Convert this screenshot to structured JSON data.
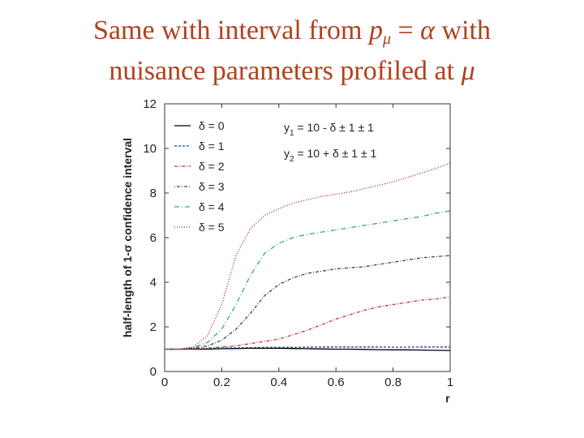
{
  "slide": {
    "title_line1_a": "Same with interval from ",
    "title_p": "p",
    "title_sub": "μ",
    "title_line1_b": " = ",
    "title_alpha": "α",
    "title_line1_c": " with",
    "title_line2_a": "nuisance parameters profiled at ",
    "title_mu": "μ"
  },
  "chart_data": {
    "type": "line",
    "title": "",
    "xlabel": "r",
    "ylabel": "half-length of 1-σ confidence interval",
    "xlim": [
      0,
      1
    ],
    "ylim": [
      0,
      12
    ],
    "xticks": [
      "0",
      "0.2",
      "0.4",
      "0.6",
      "0.8",
      "1"
    ],
    "yticks": [
      "0",
      "2",
      "4",
      "6",
      "8",
      "10",
      "12"
    ],
    "grid": false,
    "legend_position": "top-left",
    "annotations": [
      "y1 = 10 - δ ± 1 ± 1",
      "y2 = 10 + δ ± 1 ± 1"
    ],
    "x": [
      0,
      0.05,
      0.1,
      0.15,
      0.2,
      0.25,
      0.3,
      0.35,
      0.4,
      0.45,
      0.5,
      0.55,
      0.6,
      0.65,
      0.7,
      0.75,
      0.8,
      0.85,
      0.9,
      0.95,
      1.0
    ],
    "series": [
      {
        "name": "δ = 0",
        "color": "#000000",
        "dash": "solid",
        "values": [
          1.0,
          1.0,
          1.0,
          1.0,
          1.02,
          1.03,
          1.04,
          1.04,
          1.04,
          1.03,
          1.02,
          1.01,
          1.0,
          1.0,
          0.99,
          0.98,
          0.97,
          0.97,
          0.96,
          0.95,
          0.94
        ]
      },
      {
        "name": "δ = 1",
        "color": "#1f3fb0",
        "dash": "3,2",
        "values": [
          1.0,
          1.0,
          1.02,
          1.03,
          1.05,
          1.06,
          1.07,
          1.08,
          1.08,
          1.08,
          1.09,
          1.1,
          1.1,
          1.1,
          1.1,
          1.1,
          1.09,
          1.09,
          1.1,
          1.1,
          1.1
        ]
      },
      {
        "name": "δ = 2",
        "color": "#c83232",
        "dash": "4,2,1,2",
        "values": [
          1.0,
          1.0,
          1.02,
          1.05,
          1.1,
          1.15,
          1.25,
          1.35,
          1.45,
          1.65,
          1.85,
          2.1,
          2.35,
          2.55,
          2.75,
          2.9,
          3.0,
          3.1,
          3.2,
          3.25,
          3.35
        ]
      },
      {
        "name": "δ = 3",
        "color": "#404040",
        "dash": "1,2,4,2",
        "values": [
          1.0,
          1.0,
          1.05,
          1.15,
          1.4,
          1.9,
          2.6,
          3.4,
          3.9,
          4.2,
          4.4,
          4.5,
          4.6,
          4.65,
          4.7,
          4.8,
          4.9,
          5.0,
          5.1,
          5.15,
          5.2
        ]
      },
      {
        "name": "δ = 4",
        "color": "#3aa0a0",
        "dash": "6,3,1,3",
        "values": [
          1.0,
          1.0,
          1.08,
          1.3,
          1.9,
          3.0,
          4.3,
          5.3,
          5.75,
          6.0,
          6.15,
          6.25,
          6.35,
          6.45,
          6.55,
          6.65,
          6.75,
          6.85,
          6.95,
          7.1,
          7.2
        ]
      },
      {
        "name": "δ = 5",
        "color": "#a02040",
        "dash": "1,2",
        "values": [
          1.0,
          1.0,
          1.1,
          1.6,
          3.0,
          5.2,
          6.4,
          7.0,
          7.3,
          7.55,
          7.7,
          7.85,
          7.95,
          8.05,
          8.2,
          8.35,
          8.5,
          8.7,
          8.9,
          9.1,
          9.35
        ]
      }
    ]
  }
}
